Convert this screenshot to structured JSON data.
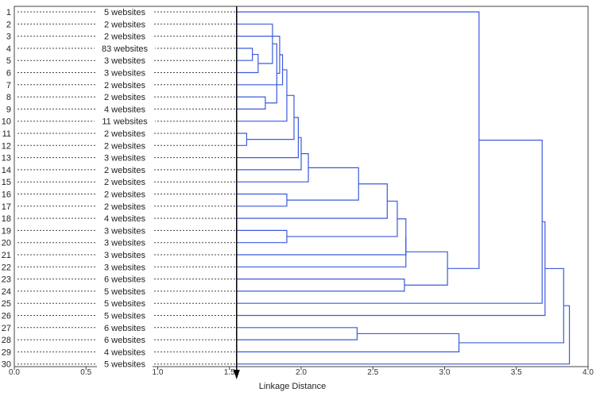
{
  "chart_data": {
    "type": "dendrogram",
    "xlabel": "Linkage Distance",
    "xlim": [
      0.0,
      4.0
    ],
    "x_ticks": [
      "0.0",
      "0.5",
      "1.0",
      "1.5",
      "2.0",
      "2.5",
      "3.0",
      "3.5",
      "4.0"
    ],
    "cut_line": 1.55,
    "leaves": [
      {
        "id": "1",
        "label": "5 websites"
      },
      {
        "id": "2",
        "label": "2 websites"
      },
      {
        "id": "3",
        "label": "2 websites"
      },
      {
        "id": "4",
        "label": "83 websites"
      },
      {
        "id": "5",
        "label": "3 websites"
      },
      {
        "id": "6",
        "label": "3 websites"
      },
      {
        "id": "7",
        "label": "2 websites"
      },
      {
        "id": "8",
        "label": "2 websites"
      },
      {
        "id": "9",
        "label": "4 websites"
      },
      {
        "id": "10",
        "label": "11 websites"
      },
      {
        "id": "11",
        "label": "2 websites"
      },
      {
        "id": "12",
        "label": "2 websites"
      },
      {
        "id": "13",
        "label": "3 websites"
      },
      {
        "id": "14",
        "label": "2 websites"
      },
      {
        "id": "15",
        "label": "2 websites"
      },
      {
        "id": "16",
        "label": "2 websites"
      },
      {
        "id": "17",
        "label": "2 websites"
      },
      {
        "id": "18",
        "label": "4 websites"
      },
      {
        "id": "19",
        "label": "3 websites"
      },
      {
        "id": "20",
        "label": "3 websites"
      },
      {
        "id": "21",
        "label": "3 websites"
      },
      {
        "id": "22",
        "label": "3 websites"
      },
      {
        "id": "23",
        "label": "6 websites"
      },
      {
        "id": "24",
        "label": "5 websites"
      },
      {
        "id": "25",
        "label": "5 websites"
      },
      {
        "id": "26",
        "label": "5 websites"
      },
      {
        "id": "27",
        "label": "6 websites"
      },
      {
        "id": "28",
        "label": "6 websites"
      },
      {
        "id": "29",
        "label": "4 websites"
      },
      {
        "id": "30",
        "label": "5 websites"
      }
    ],
    "merges": [
      [
        "L4",
        "L5",
        1.66
      ],
      [
        "M0",
        "L6",
        1.7
      ],
      [
        "L8",
        "L9",
        1.75
      ],
      [
        "L2",
        "M1",
        1.8
      ],
      [
        "M3",
        "M2",
        1.83
      ],
      [
        "L11",
        "L12",
        1.62
      ],
      [
        "L16",
        "L17",
        1.9
      ],
      [
        "L19",
        "L20",
        1.9
      ],
      [
        "L3",
        "M4",
        1.85
      ],
      [
        "M8",
        "L7",
        1.87
      ],
      [
        "M9",
        "L10",
        1.9
      ],
      [
        "M10",
        "M5",
        1.95
      ],
      [
        "M11",
        "L13",
        1.98
      ],
      [
        "M12",
        "L14",
        2.0
      ],
      [
        "M13",
        "L15",
        2.05
      ],
      [
        "M14",
        "M6",
        2.4
      ],
      [
        "M15",
        "L18",
        2.6
      ],
      [
        "M16",
        "M7",
        2.67
      ],
      [
        "M17",
        "L21",
        2.73
      ],
      [
        "M18",
        "L22",
        2.73
      ],
      [
        "L23",
        "L24",
        2.72
      ],
      [
        "M19",
        "M20",
        3.02
      ],
      [
        "L1",
        "M21",
        3.24
      ],
      [
        "L27",
        "L28",
        2.39
      ],
      [
        "M23",
        "L29",
        3.1
      ],
      [
        "M22",
        "L25",
        3.68
      ],
      [
        "M25",
        "L26",
        3.7
      ],
      [
        "M26",
        "M24",
        3.83
      ],
      [
        "M27",
        "L30",
        3.87
      ]
    ]
  }
}
